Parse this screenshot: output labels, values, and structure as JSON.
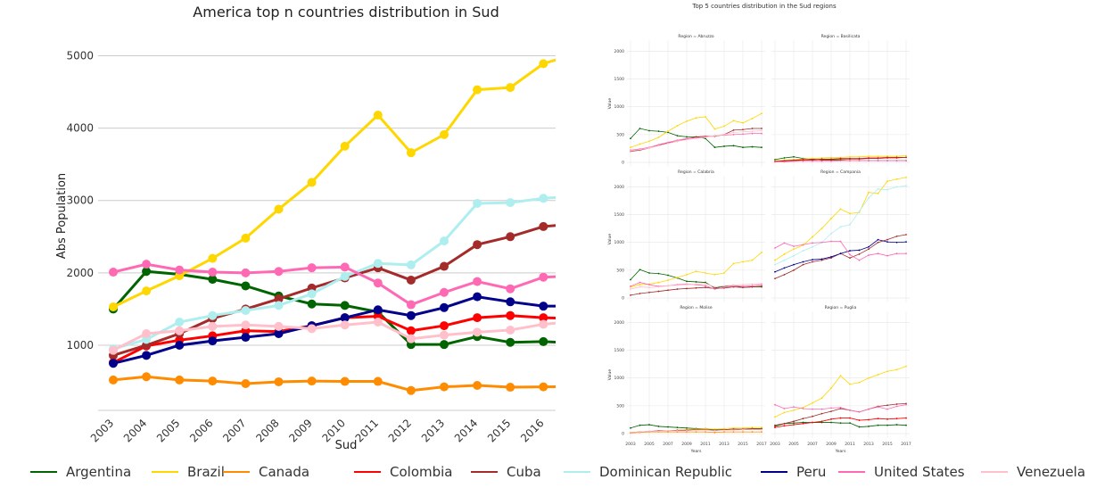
{
  "colors": {
    "Argentina": "#006400",
    "Brazil": "#FFD700",
    "Canada": "#FF8C00",
    "Colombia": "#FF0000",
    "Cuba": "#A52A2A",
    "Dominican Republic": "#AFEEEE",
    "Peru": "#00008B",
    "United States": "#FF69B4",
    "Venezuela": "#FFC0CB"
  },
  "legend": [
    "Argentina",
    "Brazil",
    "Canada",
    "Colombia",
    "Cuba",
    "Dominican Republic",
    "Peru",
    "United States",
    "Venezuela"
  ],
  "chart_data": [
    {
      "type": "line",
      "title": "America top n countries distribution in Sud",
      "xlabel": "Sud",
      "ylabel": "Abs Population",
      "x": [
        "2003",
        "2004",
        "2005",
        "2006",
        "2007",
        "2008",
        "2009",
        "2010",
        "2011",
        "2012",
        "2013",
        "2014",
        "2015",
        "2016",
        "2017"
      ],
      "xticks": [
        "2003",
        "2004",
        "2005",
        "2006",
        "2007",
        "2008",
        "2009",
        "2010",
        "2011",
        "2012",
        "2013",
        "2014",
        "2015",
        "2016"
      ],
      "yticks": [
        1000,
        2000,
        3000,
        4000,
        5000
      ],
      "ylim": [
        100,
        5400
      ],
      "grid": "horizontal",
      "series": [
        {
          "name": "Argentina",
          "values": [
            1500,
            2020,
            1980,
            1910,
            1820,
            1680,
            1570,
            1550,
            1460,
            1010,
            1010,
            1120,
            1040,
            1050,
            1030
          ]
        },
        {
          "name": "Brazil",
          "values": [
            1530,
            1750,
            1960,
            2200,
            2480,
            2880,
            3250,
            3750,
            4180,
            3660,
            3910,
            4530,
            4560,
            4890,
            5030
          ]
        },
        {
          "name": "Canada",
          "values": [
            520,
            565,
            520,
            505,
            470,
            495,
            505,
            500,
            500,
            375,
            425,
            445,
            420,
            425,
            430
          ]
        },
        {
          "name": "Colombia",
          "values": [
            760,
            990,
            1070,
            1130,
            1200,
            1190,
            1270,
            1380,
            1400,
            1200,
            1270,
            1380,
            1410,
            1380,
            1370
          ]
        },
        {
          "name": "Cuba",
          "values": [
            860,
            1000,
            1160,
            1370,
            1500,
            1640,
            1790,
            1930,
            2070,
            1900,
            2090,
            2390,
            2500,
            2640,
            2680
          ]
        },
        {
          "name": "Dominican Republic",
          "values": [
            950,
            1080,
            1320,
            1410,
            1480,
            1550,
            1710,
            1950,
            2130,
            2110,
            2440,
            2960,
            2970,
            3030,
            3060
          ]
        },
        {
          "name": "Peru",
          "values": [
            750,
            860,
            1000,
            1060,
            1110,
            1160,
            1270,
            1380,
            1490,
            1410,
            1520,
            1670,
            1600,
            1540,
            1540
          ]
        },
        {
          "name": "United States",
          "values": [
            2010,
            2120,
            2040,
            2010,
            2000,
            2020,
            2070,
            2080,
            1860,
            1560,
            1730,
            1880,
            1780,
            1940,
            1960
          ]
        },
        {
          "name": "Venezuela",
          "values": [
            930,
            1160,
            1200,
            1260,
            1280,
            1260,
            1230,
            1280,
            1320,
            1090,
            1140,
            1180,
            1210,
            1290,
            1330
          ]
        }
      ]
    },
    {
      "type": "line",
      "title": "Top 5 countries distribution in the Sud regions",
      "xlabel": "Years",
      "ylabel": "Value",
      "x": [
        "2003",
        "2004",
        "2005",
        "2006",
        "2007",
        "2008",
        "2009",
        "2010",
        "2011",
        "2012",
        "2013",
        "2014",
        "2015",
        "2016",
        "2017"
      ],
      "xticks": [
        "2003",
        "2005",
        "2007",
        "2009",
        "2011",
        "2013",
        "2015",
        "2017"
      ],
      "yticks": [
        0,
        500,
        1000,
        1500,
        2000
      ],
      "ylim": [
        -80,
        2200
      ],
      "grid": "both",
      "panels": [
        {
          "title": "Region = Abruzzo",
          "series": [
            {
              "name": "Argentina",
              "values": [
                430,
                610,
                570,
                560,
                540,
                480,
                460,
                460,
                430,
                270,
                290,
                300,
                270,
                280,
                270
              ]
            },
            {
              "name": "Brazil",
              "values": [
                270,
                330,
                380,
                450,
                560,
                660,
                740,
                800,
                820,
                600,
                650,
                750,
                710,
                790,
                880
              ]
            },
            {
              "name": "Cuba",
              "values": [
                200,
                220,
                260,
                310,
                350,
                380,
                420,
                460,
                470,
                470,
                500,
                580,
                590,
                610,
                610
              ]
            },
            {
              "name": "United States",
              "values": [
                220,
                240,
                270,
                320,
                360,
                400,
                430,
                440,
                460,
                480,
                490,
                500,
                510,
                520,
                520
              ]
            },
            {
              "name": "Venezuela",
              "values": [
                210,
                230,
                260,
                300,
                340,
                380,
                410,
                430,
                450,
                480,
                500,
                540,
                550,
                560,
                570
              ]
            }
          ]
        },
        {
          "title": "Region = Basilicata",
          "series": [
            {
              "name": "Argentina",
              "values": [
                50,
                80,
                100,
                70,
                60,
                40,
                40,
                40,
                30,
                30,
                30,
                30,
                30,
                30,
                30
              ]
            },
            {
              "name": "Brazil",
              "values": [
                30,
                40,
                50,
                60,
                70,
                80,
                90,
                90,
                100,
                100,
                110,
                110,
                110,
                110,
                120
              ]
            },
            {
              "name": "Colombia",
              "values": [
                10,
                20,
                30,
                40,
                40,
                50,
                50,
                60,
                60,
                60,
                70,
                70,
                80,
                80,
                90
              ]
            },
            {
              "name": "Cuba",
              "values": [
                20,
                30,
                40,
                50,
                50,
                60,
                60,
                70,
                70,
                70,
                80,
                80,
                90,
                90,
                90
              ]
            },
            {
              "name": "United States",
              "values": [
                10,
                10,
                20,
                20,
                20,
                20,
                20,
                30,
                30,
                30,
                30,
                30,
                30,
                30,
                30
              ]
            }
          ]
        },
        {
          "title": "Region = Calabria",
          "series": [
            {
              "name": "Argentina",
              "values": [
                330,
                510,
                450,
                440,
                410,
                360,
                300,
                290,
                280,
                180,
                210,
                230,
                190,
                200,
                200
              ]
            },
            {
              "name": "Brazil",
              "values": [
                200,
                240,
                250,
                280,
                320,
                370,
                420,
                480,
                450,
                420,
                450,
                620,
                650,
                680,
                820
              ]
            },
            {
              "name": "Cuba",
              "values": [
                50,
                80,
                100,
                120,
                140,
                160,
                170,
                180,
                190,
                170,
                180,
                200,
                190,
                200,
                210
              ]
            },
            {
              "name": "United States",
              "values": [
                210,
                280,
                240,
                210,
                220,
                240,
                250,
                240,
                220,
                160,
                190,
                220,
                210,
                220,
                240
              ]
            },
            {
              "name": "Venezuela",
              "values": [
                160,
                200,
                190,
                200,
                220,
                230,
                240,
                250,
                260,
                200,
                220,
                230,
                240,
                250,
                260
              ]
            }
          ]
        },
        {
          "title": "Region = Campania",
          "series": [
            {
              "name": "Brazil",
              "values": [
                680,
                790,
                880,
                950,
                1100,
                1250,
                1430,
                1600,
                1520,
                1540,
                1900,
                1880,
                2100,
                2140,
                2170
              ]
            },
            {
              "name": "Cuba",
              "values": [
                350,
                420,
                500,
                600,
                650,
                680,
                720,
                800,
                720,
                790,
                880,
                1000,
                1050,
                1110,
                1140
              ]
            },
            {
              "name": "Dominican Republic",
              "values": [
                600,
                680,
                760,
                850,
                920,
                1000,
                1160,
                1280,
                1320,
                1560,
                1800,
                1960,
                1950,
                2000,
                2020
              ]
            },
            {
              "name": "Peru",
              "values": [
                470,
                540,
                600,
                650,
                690,
                700,
                740,
                800,
                850,
                860,
                920,
                1050,
                1010,
                1000,
                1010
              ]
            },
            {
              "name": "United States",
              "values": [
                900,
                990,
                930,
                960,
                990,
                1000,
                1020,
                1020,
                780,
                680,
                770,
                800,
                760,
                800,
                800
              ]
            }
          ]
        },
        {
          "title": "Region = Molise",
          "series": [
            {
              "name": "Argentina",
              "values": [
                100,
                150,
                160,
                130,
                120,
                110,
                100,
                90,
                90,
                70,
                70,
                80,
                70,
                80,
                80
              ]
            },
            {
              "name": "Brazil",
              "values": [
                20,
                30,
                40,
                40,
                50,
                60,
                70,
                80,
                90,
                80,
                90,
                100,
                100,
                110,
                110
              ]
            },
            {
              "name": "Canada",
              "values": [
                10,
                20,
                30,
                30,
                30,
                30,
                30,
                30,
                30,
                20,
                30,
                30,
                30,
                30,
                30
              ]
            },
            {
              "name": "Cuba",
              "values": [
                20,
                30,
                40,
                50,
                50,
                60,
                60,
                70,
                70,
                60,
                70,
                80,
                80,
                90,
                90
              ]
            },
            {
              "name": "Venezuela",
              "values": [
                20,
                30,
                40,
                40,
                50,
                50,
                50,
                60,
                60,
                50,
                60,
                60,
                70,
                70,
                70
              ]
            }
          ]
        },
        {
          "title": "Region = Puglia",
          "series": [
            {
              "name": "Argentina",
              "values": [
                130,
                180,
                190,
                200,
                200,
                200,
                200,
                190,
                190,
                120,
                130,
                150,
                150,
                160,
                150
              ]
            },
            {
              "name": "Brazil",
              "values": [
                300,
                380,
                420,
                470,
                550,
                640,
                820,
                1040,
                890,
                920,
                1000,
                1060,
                1120,
                1150,
                1210
              ]
            },
            {
              "name": "Colombia",
              "values": [
                110,
                140,
                160,
                180,
                200,
                220,
                260,
                280,
                280,
                240,
                250,
                270,
                260,
                270,
                280
              ]
            },
            {
              "name": "Cuba",
              "values": [
                150,
                180,
                220,
                270,
                310,
                360,
                400,
                450,
                420,
                390,
                440,
                490,
                510,
                530,
                540
              ]
            },
            {
              "name": "United States",
              "values": [
                520,
                450,
                480,
                450,
                440,
                440,
                460,
                470,
                420,
                390,
                440,
                480,
                440,
                490,
                520
              ]
            }
          ]
        }
      ]
    }
  ]
}
